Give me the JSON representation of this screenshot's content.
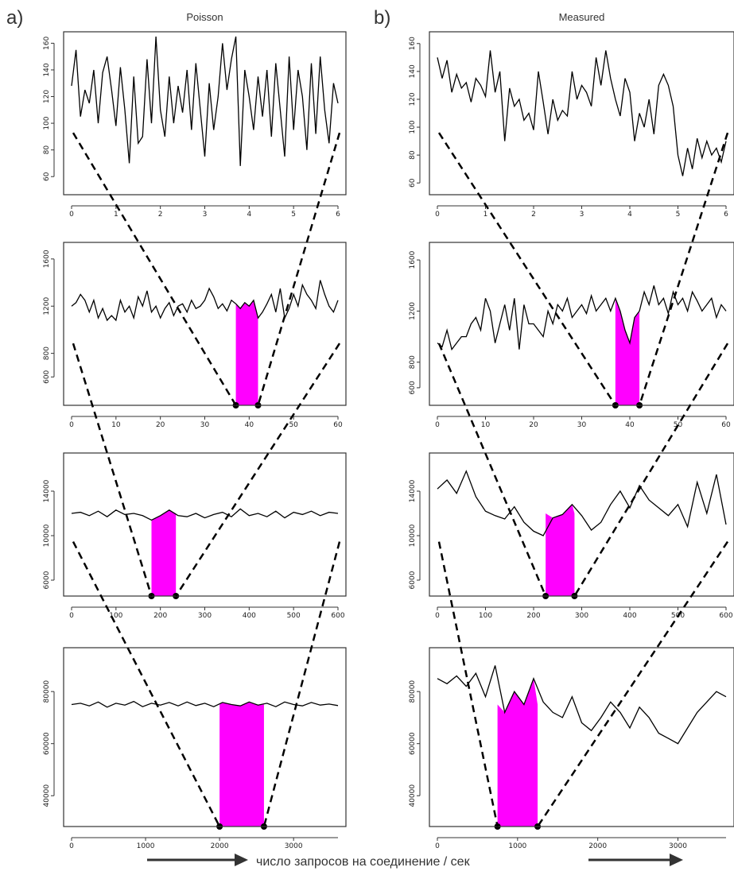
{
  "panel_a_label": "a)",
  "panel_b_label": "b)",
  "caption": "число запросов на соединение / сек",
  "colors": {
    "highlight": "#ff00ff",
    "line": "#000000",
    "frame": "#333333"
  },
  "chart_data": [
    {
      "id": "a1",
      "type": "line",
      "title": "Poisson",
      "xlim": [
        0,
        6
      ],
      "ylim": [
        50,
        165
      ],
      "xticks": [
        "0",
        "1",
        "2",
        "3",
        "4",
        "5",
        "6"
      ],
      "yticks": [
        "60",
        "80",
        "100",
        "120",
        "140",
        "160"
      ],
      "x": [
        0.0,
        0.1,
        0.2,
        0.3,
        0.4,
        0.5,
        0.6,
        0.7,
        0.8,
        0.9,
        1.0,
        1.1,
        1.2,
        1.3,
        1.4,
        1.5,
        1.6,
        1.7,
        1.8,
        1.9,
        2.0,
        2.1,
        2.2,
        2.3,
        2.4,
        2.5,
        2.6,
        2.7,
        2.8,
        2.9,
        3.0,
        3.1,
        3.2,
        3.3,
        3.4,
        3.5,
        3.6,
        3.7,
        3.8,
        3.9,
        4.0,
        4.1,
        4.2,
        4.3,
        4.4,
        4.5,
        4.6,
        4.7,
        4.8,
        4.9,
        5.0,
        5.1,
        5.2,
        5.3,
        5.4,
        5.5,
        5.6,
        5.7,
        5.8,
        5.9,
        6.0
      ],
      "y": [
        128,
        155,
        105,
        125,
        115,
        140,
        100,
        138,
        150,
        125,
        98,
        142,
        110,
        70,
        135,
        85,
        90,
        148,
        100,
        165,
        110,
        90,
        135,
        100,
        128,
        108,
        140,
        95,
        145,
        110,
        75,
        130,
        95,
        120,
        160,
        125,
        148,
        165,
        68,
        140,
        120,
        95,
        135,
        105,
        140,
        90,
        145,
        110,
        75,
        150,
        95,
        140,
        120,
        80,
        145,
        92,
        150,
        110,
        85,
        130,
        115
      ],
      "highlight": null
    },
    {
      "id": "a2",
      "type": "line",
      "title": "",
      "xlim": [
        0,
        60
      ],
      "ylim": [
        400,
        1700
      ],
      "xticks": [
        "0",
        "10",
        "20",
        "30",
        "40",
        "50",
        "60"
      ],
      "yticks": [
        "600",
        "800",
        "1200",
        "1600"
      ],
      "x": [
        0,
        1,
        2,
        3,
        4,
        5,
        6,
        7,
        8,
        9,
        10,
        11,
        12,
        13,
        14,
        15,
        16,
        17,
        18,
        19,
        20,
        21,
        22,
        23,
        24,
        25,
        26,
        27,
        28,
        29,
        30,
        31,
        32,
        33,
        34,
        35,
        36,
        37,
        38,
        39,
        40,
        41,
        42,
        43,
        44,
        45,
        46,
        47,
        48,
        49,
        50,
        51,
        52,
        53,
        54,
        55,
        56,
        57,
        58,
        59,
        60
      ],
      "y": [
        1200,
        1230,
        1300,
        1250,
        1150,
        1250,
        1100,
        1180,
        1080,
        1120,
        1080,
        1250,
        1150,
        1200,
        1100,
        1280,
        1200,
        1330,
        1150,
        1200,
        1100,
        1180,
        1230,
        1120,
        1200,
        1220,
        1150,
        1250,
        1180,
        1200,
        1250,
        1350,
        1280,
        1180,
        1220,
        1160,
        1250,
        1220,
        1180,
        1230,
        1200,
        1250,
        1100,
        1150,
        1220,
        1300,
        1150,
        1350,
        1100,
        1180,
        1300,
        1200,
        1380,
        1300,
        1250,
        1180,
        1420,
        1300,
        1200,
        1150,
        1250
      ],
      "highlight": {
        "from": 37,
        "to": 42,
        "level": 1250
      }
    },
    {
      "id": "a3",
      "type": "line",
      "title": "",
      "xlim": [
        0,
        600
      ],
      "ylim": [
        5000,
        17000
      ],
      "xticks": [
        "0",
        "100",
        "200",
        "300",
        "400",
        "500",
        "600"
      ],
      "yticks": [
        "6000",
        "10000",
        "14000"
      ],
      "x": [
        0,
        20,
        40,
        60,
        80,
        100,
        120,
        140,
        160,
        180,
        200,
        220,
        240,
        260,
        280,
        300,
        320,
        340,
        360,
        380,
        400,
        420,
        440,
        460,
        480,
        500,
        520,
        540,
        560,
        580,
        600
      ],
      "y": [
        12000,
        12100,
        11800,
        12200,
        11700,
        12300,
        11900,
        12000,
        11800,
        11400,
        11800,
        12300,
        11800,
        11700,
        12000,
        11600,
        11900,
        12100,
        11700,
        12400,
        11800,
        12000,
        11700,
        12200,
        11600,
        12100,
        11900,
        12200,
        11800,
        12100,
        12000
      ],
      "highlight": {
        "from": 180,
        "to": 235,
        "level": 12000
      }
    },
    {
      "id": "a4",
      "type": "line",
      "title": "",
      "xlim": [
        0,
        3600
      ],
      "ylim": [
        30000,
        95000
      ],
      "xticks": [
        "0",
        "1000",
        "2000",
        "3000"
      ],
      "yticks": [
        "40000",
        "60000",
        "80000"
      ],
      "x": [
        0,
        120,
        240,
        360,
        480,
        600,
        720,
        840,
        960,
        1080,
        1200,
        1320,
        1440,
        1560,
        1680,
        1800,
        1920,
        2040,
        2160,
        2280,
        2400,
        2520,
        2640,
        2760,
        2880,
        3000,
        3120,
        3240,
        3360,
        3480,
        3600
      ],
      "y": [
        75000,
        75500,
        74500,
        76000,
        74000,
        75500,
        74800,
        76200,
        74200,
        75500,
        74800,
        75800,
        74500,
        76000,
        74600,
        75500,
        74200,
        75800,
        75000,
        74500,
        76000,
        74800,
        75500,
        74200,
        76000,
        75000,
        74500,
        75800,
        74800,
        75200,
        74600
      ],
      "highlight": {
        "from": 2000,
        "to": 2600,
        "level": 75000
      }
    },
    {
      "id": "b1",
      "type": "line",
      "title": "Measured",
      "xlim": [
        0,
        6
      ],
      "ylim": [
        55,
        165
      ],
      "xticks": [
        "0",
        "1",
        "2",
        "3",
        "4",
        "5",
        "6"
      ],
      "yticks": [
        "60",
        "80",
        "100",
        "120",
        "140",
        "160"
      ],
      "x": [
        0.0,
        0.1,
        0.2,
        0.3,
        0.4,
        0.5,
        0.6,
        0.7,
        0.8,
        0.9,
        1.0,
        1.1,
        1.2,
        1.3,
        1.4,
        1.5,
        1.6,
        1.7,
        1.8,
        1.9,
        2.0,
        2.1,
        2.2,
        2.3,
        2.4,
        2.5,
        2.6,
        2.7,
        2.8,
        2.9,
        3.0,
        3.1,
        3.2,
        3.3,
        3.4,
        3.5,
        3.6,
        3.7,
        3.8,
        3.9,
        4.0,
        4.1,
        4.2,
        4.3,
        4.4,
        4.5,
        4.6,
        4.7,
        4.8,
        4.9,
        5.0,
        5.1,
        5.2,
        5.3,
        5.4,
        5.5,
        5.6,
        5.7,
        5.8,
        5.9,
        6.0
      ],
      "y": [
        150,
        135,
        148,
        125,
        138,
        128,
        132,
        118,
        135,
        130,
        122,
        155,
        125,
        140,
        90,
        128,
        115,
        120,
        105,
        110,
        98,
        140,
        118,
        95,
        120,
        105,
        112,
        108,
        140,
        120,
        130,
        125,
        115,
        150,
        130,
        155,
        135,
        120,
        108,
        135,
        125,
        90,
        110,
        100,
        120,
        95,
        130,
        138,
        130,
        115,
        80,
        65,
        85,
        70,
        92,
        78,
        90,
        80,
        85,
        75,
        90
      ],
      "highlight": null
    },
    {
      "id": "b2",
      "type": "line",
      "title": "",
      "xlim": [
        0,
        60
      ],
      "ylim": [
        500,
        1700
      ],
      "xticks": [
        "0",
        "10",
        "20",
        "30",
        "40",
        "50",
        "60"
      ],
      "yticks": [
        "600",
        "800",
        "1200",
        "1600"
      ],
      "x": [
        0,
        1,
        2,
        3,
        4,
        5,
        6,
        7,
        8,
        9,
        10,
        11,
        12,
        13,
        14,
        15,
        16,
        17,
        18,
        19,
        20,
        21,
        22,
        23,
        24,
        25,
        26,
        27,
        28,
        29,
        30,
        31,
        32,
        33,
        34,
        35,
        36,
        37,
        38,
        39,
        40,
        41,
        42,
        43,
        44,
        45,
        46,
        47,
        48,
        49,
        50,
        51,
        52,
        53,
        54,
        55,
        56,
        57,
        58,
        59,
        60
      ],
      "y": [
        950,
        920,
        1050,
        900,
        950,
        1000,
        1000,
        1100,
        1150,
        1050,
        1300,
        1200,
        950,
        1100,
        1250,
        1050,
        1300,
        900,
        1250,
        1100,
        1100,
        1050,
        1000,
        1200,
        1100,
        1250,
        1200,
        1300,
        1150,
        1200,
        1250,
        1180,
        1320,
        1200,
        1250,
        1300,
        1200,
        1300,
        1200,
        1050,
        950,
        1150,
        1200,
        1350,
        1250,
        1400,
        1250,
        1300,
        1180,
        1350,
        1250,
        1300,
        1200,
        1350,
        1280,
        1200,
        1250,
        1300,
        1150,
        1250,
        1200
      ],
      "highlight": {
        "from": 37,
        "to": 42,
        "level": 1250
      }
    },
    {
      "id": "b3",
      "type": "line",
      "title": "",
      "xlim": [
        0,
        600
      ],
      "ylim": [
        5000,
        17000
      ],
      "xticks": [
        "0",
        "100",
        "200",
        "300",
        "400",
        "500",
        "600"
      ],
      "yticks": [
        "6000",
        "10000",
        "14000"
      ],
      "x": [
        0,
        20,
        40,
        60,
        80,
        100,
        120,
        140,
        160,
        180,
        200,
        220,
        240,
        260,
        280,
        300,
        320,
        340,
        360,
        380,
        400,
        420,
        440,
        460,
        480,
        500,
        520,
        540,
        560,
        580,
        600
      ],
      "y": [
        14200,
        15000,
        13800,
        15800,
        13500,
        12200,
        11800,
        11500,
        12600,
        11200,
        10400,
        10000,
        11600,
        11900,
        12800,
        11800,
        10500,
        11200,
        12800,
        14000,
        12500,
        14500,
        13200,
        12500,
        11800,
        12800,
        10800,
        14800,
        12000,
        15500,
        11000
      ],
      "highlight": {
        "from": 225,
        "to": 285,
        "level": 12000
      }
    },
    {
      "id": "b4",
      "type": "line",
      "title": "",
      "xlim": [
        0,
        3600
      ],
      "ylim": [
        30000,
        95000
      ],
      "xticks": [
        "0",
        "1000",
        "2000",
        "3000"
      ],
      "yticks": [
        "40000",
        "60000",
        "80000"
      ],
      "x": [
        0,
        120,
        240,
        360,
        480,
        600,
        720,
        840,
        960,
        1080,
        1200,
        1320,
        1440,
        1560,
        1680,
        1800,
        1920,
        2040,
        2160,
        2280,
        2400,
        2520,
        2640,
        2760,
        2880,
        3000,
        3120,
        3240,
        3360,
        3480,
        3600
      ],
      "y": [
        85000,
        83000,
        86000,
        82000,
        87000,
        78000,
        90000,
        72000,
        80000,
        75000,
        85000,
        76000,
        72000,
        70000,
        78000,
        68000,
        65000,
        70000,
        76000,
        72000,
        66000,
        74000,
        70000,
        64000,
        62000,
        60000,
        66000,
        72000,
        76000,
        80000,
        78000
      ],
      "highlight": {
        "from": 750,
        "to": 1250,
        "level": 75000
      }
    }
  ]
}
